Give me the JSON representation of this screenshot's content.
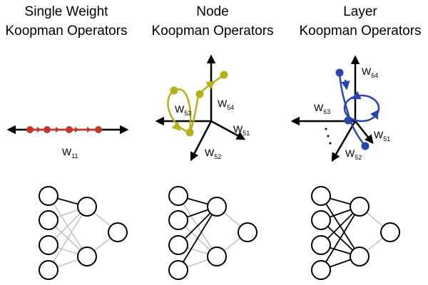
{
  "columns": [
    {
      "title_line1": "Single Weight",
      "title_line2": "Koopman Operators",
      "axis_labels": [
        {
          "main": "W",
          "sub": "11"
        }
      ]
    },
    {
      "title_line1": "Node",
      "title_line2": "Koopman Operators",
      "axis_labels": [
        {
          "main": "W",
          "sub": "53"
        },
        {
          "main": "W",
          "sub": "54"
        },
        {
          "main": "W",
          "sub": "51"
        },
        {
          "main": "W",
          "sub": "52"
        }
      ]
    },
    {
      "title_line1": "Layer",
      "title_line2": "Koopman Operators",
      "axis_labels": [
        {
          "main": "W",
          "sub": "64"
        },
        {
          "main": "W",
          "sub": "63"
        },
        {
          "main": "W",
          "sub": "51"
        },
        {
          "main": "W",
          "sub": "52"
        }
      ]
    }
  ],
  "colors": {
    "single_weight": "#c0392b",
    "node": "#b5b219",
    "layer": "#2a45b0",
    "highlight_edge": "#000000",
    "faded_edge": "#c4c4c4"
  }
}
